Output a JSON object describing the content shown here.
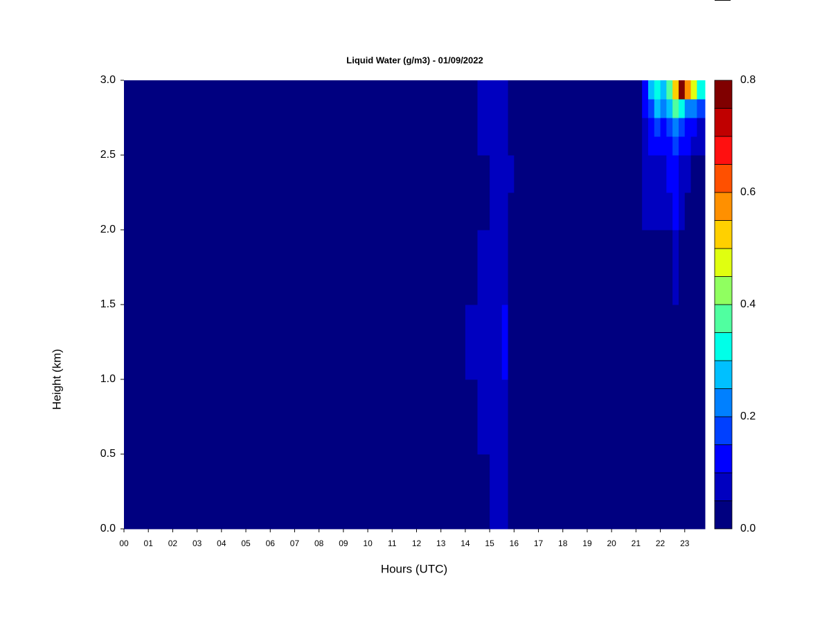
{
  "chart_data": {
    "type": "heatmap",
    "title": "Liquid Water (g/m3) - 01/09/2022",
    "xlabel": "Hours (UTC)",
    "ylabel": "Height (km)",
    "x_bins": [
      0,
      14,
      14.5,
      15,
      15.25,
      15.5,
      15.75,
      16,
      21.25,
      21.5,
      21.75,
      22,
      22.25,
      22.5,
      22.75,
      23,
      23.25,
      23.5,
      23.83
    ],
    "y_bins": [
      0,
      0.5,
      1.0,
      1.5,
      2.0,
      2.25,
      2.5,
      2.625,
      2.75,
      2.875,
      3.0
    ],
    "values": [
      [
        0,
        0,
        0,
        0.06,
        0.06,
        0.07,
        0,
        0,
        0,
        0,
        0,
        0,
        0,
        0,
        0,
        0,
        0,
        0
      ],
      [
        0,
        0,
        0.06,
        0.06,
        0.07,
        0.08,
        0,
        0,
        0,
        0,
        0,
        0,
        0,
        0,
        0,
        0,
        0,
        0
      ],
      [
        0,
        0.06,
        0.06,
        0.07,
        0.07,
        0.1,
        0,
        0,
        0,
        0,
        0,
        0,
        0,
        0,
        0,
        0,
        0,
        0
      ],
      [
        0,
        0,
        0.05,
        0.06,
        0.06,
        0.07,
        0,
        0,
        0,
        0,
        0,
        0,
        0,
        0.06,
        0,
        0,
        0,
        0
      ],
      [
        0,
        0,
        0,
        0.06,
        0.06,
        0.06,
        0,
        0,
        0.06,
        0.06,
        0.06,
        0.06,
        0.07,
        0.1,
        0.07,
        0,
        0,
        0
      ],
      [
        0,
        0,
        0,
        0.06,
        0.06,
        0.07,
        0.06,
        0,
        0.06,
        0.08,
        0.08,
        0.07,
        0.1,
        0.14,
        0.08,
        0.06,
        0,
        0
      ],
      [
        0,
        0,
        0.06,
        0.06,
        0.06,
        0.06,
        0,
        0,
        0.07,
        0.1,
        0.12,
        0.1,
        0.12,
        0.16,
        0.12,
        0.1,
        0.08,
        0.06
      ],
      [
        0,
        0,
        0.06,
        0.06,
        0.06,
        0.06,
        0,
        0,
        0.08,
        0.13,
        0.15,
        0.14,
        0.16,
        0.22,
        0.18,
        0.14,
        0.12,
        0.08
      ],
      [
        0,
        0,
        0.06,
        0.06,
        0.06,
        0.06,
        0,
        0,
        0.1,
        0.18,
        0.25,
        0.2,
        0.25,
        0.35,
        0.3,
        0.22,
        0.2,
        0.15
      ],
      [
        0,
        0,
        0.06,
        0.06,
        0.06,
        0.06,
        0,
        0,
        0.12,
        0.25,
        0.3,
        0.28,
        0.35,
        0.5,
        0.78,
        0.55,
        0.45,
        0.3
      ]
    ],
    "levels": [
      0,
      0.05,
      0.1,
      0.15,
      0.2,
      0.25,
      0.3,
      0.35,
      0.4,
      0.45,
      0.5,
      0.55,
      0.6,
      0.65,
      0.7,
      0.75,
      0.8
    ],
    "colors": [
      "#000080",
      "#0000c0",
      "#0000ff",
      "#0040ff",
      "#0080ff",
      "#00c0ff",
      "#00ffe8",
      "#50ffa0",
      "#90ff60",
      "#e0ff10",
      "#ffd000",
      "#ff9000",
      "#ff5000",
      "#ff1010",
      "#c00000",
      "#800000"
    ],
    "xlim": [
      0,
      23.83
    ],
    "ylim": [
      0,
      3.0
    ],
    "xticks": [
      {
        "value": 0,
        "label": "00"
      },
      {
        "value": 1,
        "label": "01"
      },
      {
        "value": 2,
        "label": "02"
      },
      {
        "value": 3,
        "label": "03"
      },
      {
        "value": 4,
        "label": "04"
      },
      {
        "value": 5,
        "label": "05"
      },
      {
        "value": 6,
        "label": "06"
      },
      {
        "value": 7,
        "label": "07"
      },
      {
        "value": 8,
        "label": "08"
      },
      {
        "value": 9,
        "label": "09"
      },
      10,
      11,
      12,
      13,
      14,
      15,
      16,
      17,
      18,
      19,
      20,
      21,
      22,
      23
    ],
    "yticks": [
      {
        "value": 0,
        "label": "0.0"
      },
      {
        "value": 0.5,
        "label": "0.5"
      },
      {
        "value": 1.0,
        "label": "1.0"
      },
      {
        "value": 1.5,
        "label": "1.5"
      },
      {
        "value": 2.0,
        "label": "2.0"
      },
      {
        "value": 2.5,
        "label": "2.5"
      },
      {
        "value": 3.0,
        "label": "3.0"
      }
    ],
    "colorbar_lim": [
      0,
      0.8
    ],
    "colorbar_ticks": [
      {
        "value": 0,
        "label": "0.0"
      },
      {
        "value": 0.2,
        "label": "0.2"
      },
      {
        "value": 0.4,
        "label": "0.4"
      },
      {
        "value": 0.6,
        "label": "0.6"
      },
      {
        "value": 0.8,
        "label": "0.8"
      }
    ]
  }
}
